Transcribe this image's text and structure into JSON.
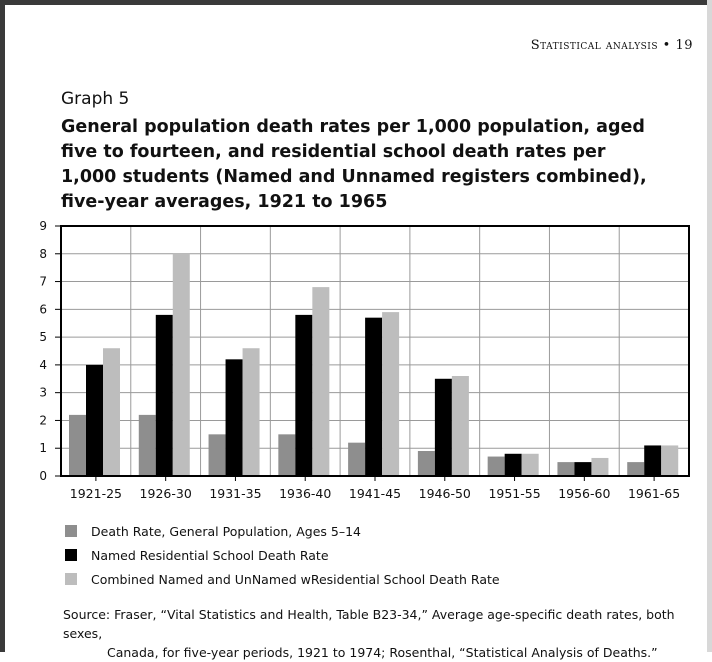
{
  "running_head": "Statistical analysis • 19",
  "graph_label": "Graph 5",
  "graph_title": "General population death rates per 1,000 population, aged five to fourteen, and residential school death rates per 1,000 students (Named and Unnamed registers combined), five-year averages, 1921 to 1965",
  "colors": {
    "general_population": "#8e8e8e",
    "named": "#000000",
    "combined": "#bdbdbd"
  },
  "chart_data": {
    "type": "bar",
    "title": "General population death rates per 1,000 population, aged five to fourteen, and residential school death rates per 1,000 students (Named and Unnamed registers combined), five-year averages, 1921 to 1965",
    "categories": [
      "1921-25",
      "1926-30",
      "1931-35",
      "1936-40",
      "1941-45",
      "1946-50",
      "1951-55",
      "1956-60",
      "1961-65"
    ],
    "series": [
      {
        "name": "Death Rate, General Population, Ages 5–14",
        "values": [
          2.2,
          2.2,
          1.5,
          1.5,
          1.2,
          0.9,
          0.7,
          0.5,
          0.5
        ]
      },
      {
        "name": "Named Residential School Death Rate",
        "values": [
          4.0,
          5.8,
          4.2,
          5.8,
          5.7,
          3.5,
          0.8,
          0.5,
          1.1
        ]
      },
      {
        "name": "Combined Named and UnNamed wResidential School Death Rate",
        "values": [
          4.6,
          8.0,
          4.6,
          6.8,
          5.9,
          3.6,
          0.8,
          0.65,
          1.1
        ]
      }
    ],
    "yticks": [
      "0",
      "1",
      "2",
      "3",
      "4",
      "5",
      "6",
      "7",
      "8",
      "9"
    ],
    "ylim": [
      0,
      9
    ],
    "xlabel": "",
    "ylabel": "",
    "grid": true,
    "legend_position": "bottom"
  },
  "source": {
    "line1": "Source: Fraser, “Vital Statistics and Health, Table B23-34,” Average age-specific death rates, both sexes,",
    "line2": "Canada, for five-year periods, 1921 to 1974; Rosenthal, “Statistical Analysis of Deaths.”"
  }
}
